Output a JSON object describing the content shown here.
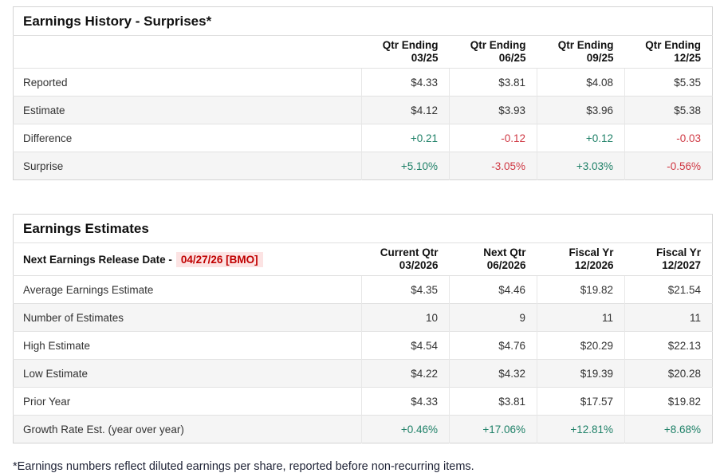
{
  "colors": {
    "positive": "#1f8168",
    "negative": "#cf3843",
    "release_date_text": "#c00000",
    "release_date_bg": "#fce3e3",
    "stripe": "#f5f5f5",
    "border": "#d4d4d4"
  },
  "earnings_history": {
    "title": "Earnings History - Surprises*",
    "columns": [
      {
        "line1": "Qtr Ending",
        "line2": "03/25"
      },
      {
        "line1": "Qtr Ending",
        "line2": "06/25"
      },
      {
        "line1": "Qtr Ending",
        "line2": "09/25"
      },
      {
        "line1": "Qtr Ending",
        "line2": "12/25"
      }
    ],
    "rows": [
      {
        "label": "Reported",
        "values": [
          "$4.33",
          "$3.81",
          "$4.08",
          "$5.35"
        ],
        "tones": [
          "",
          "",
          "",
          ""
        ]
      },
      {
        "label": "Estimate",
        "values": [
          "$4.12",
          "$3.93",
          "$3.96",
          "$5.38"
        ],
        "tones": [
          "",
          "",
          "",
          ""
        ]
      },
      {
        "label": "Difference",
        "values": [
          "+0.21",
          "-0.12",
          "+0.12",
          "-0.03"
        ],
        "tones": [
          "pos",
          "neg",
          "pos",
          "neg"
        ]
      },
      {
        "label": "Surprise",
        "values": [
          "+5.10%",
          "-3.05%",
          "+3.03%",
          "-0.56%"
        ],
        "tones": [
          "pos",
          "neg",
          "pos",
          "neg"
        ]
      }
    ]
  },
  "earnings_estimates": {
    "title": "Earnings Estimates",
    "release_label": "Next Earnings Release Date -",
    "release_date": "04/27/26 [BMO]",
    "columns": [
      {
        "line1": "Current Qtr",
        "line2": "03/2026"
      },
      {
        "line1": "Next Qtr",
        "line2": "06/2026"
      },
      {
        "line1": "Fiscal Yr",
        "line2": "12/2026"
      },
      {
        "line1": "Fiscal Yr",
        "line2": "12/2027"
      }
    ],
    "rows": [
      {
        "label": "Average Earnings Estimate",
        "values": [
          "$4.35",
          "$4.46",
          "$19.82",
          "$21.54"
        ],
        "tones": [
          "",
          "",
          "",
          ""
        ]
      },
      {
        "label": "Number of Estimates",
        "values": [
          "10",
          "9",
          "11",
          "11"
        ],
        "tones": [
          "",
          "",
          "",
          ""
        ]
      },
      {
        "label": "High Estimate",
        "values": [
          "$4.54",
          "$4.76",
          "$20.29",
          "$22.13"
        ],
        "tones": [
          "",
          "",
          "",
          ""
        ]
      },
      {
        "label": "Low Estimate",
        "values": [
          "$4.22",
          "$4.32",
          "$19.39",
          "$20.28"
        ],
        "tones": [
          "",
          "",
          "",
          ""
        ]
      },
      {
        "label": "Prior Year",
        "values": [
          "$4.33",
          "$3.81",
          "$17.57",
          "$19.82"
        ],
        "tones": [
          "",
          "",
          "",
          ""
        ]
      },
      {
        "label": "Growth Rate Est. (year over year)",
        "values": [
          "+0.46%",
          "+17.06%",
          "+12.81%",
          "+8.68%"
        ],
        "tones": [
          "pos",
          "pos",
          "pos",
          "pos"
        ]
      }
    ]
  },
  "footnote": "*Earnings numbers reflect diluted earnings per share, reported before non-recurring items."
}
